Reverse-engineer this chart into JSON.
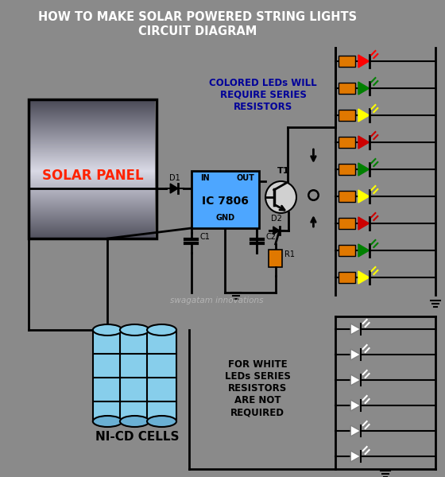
{
  "title_line1": "HOW TO MAKE SOLAR POWERED STRING LIGHTS",
  "title_line2": "CIRCUIT DIAGRAM",
  "bg_color": "#8a8a8a",
  "title_color": "#ffffff",
  "ic_color": "#4da6ff",
  "resistor_color": "#e07800",
  "led_colors": [
    "red",
    "green",
    "yellow",
    "#cc0000",
    "green",
    "yellow",
    "#cc0000",
    "green",
    "yellow"
  ],
  "watermark": "swagatam innovations",
  "text_colored": "COLORED LEDs WILL\nREQUIRE SERIES\nRESISTORS",
  "text_white": "FOR WHITE\nLEDs SERIES\nRESISTORS\nARE NOT\nREQUIRED",
  "label_solar": "SOLAR PANEL",
  "label_nicd": "NI-CD CELLS",
  "label_ic": "IC 7806",
  "label_t1": "T1",
  "label_d1": "D1",
  "label_d2": "D2",
  "label_c1": "C1",
  "label_c2": "C2",
  "label_r1": "R1",
  "label_in": "IN",
  "label_out": "OUT",
  "label_gnd": "GND",
  "cell_color_light": "#87ceeb",
  "cell_color_dark": "#6ab0d4",
  "transistor_fill": "#d0d0d0"
}
